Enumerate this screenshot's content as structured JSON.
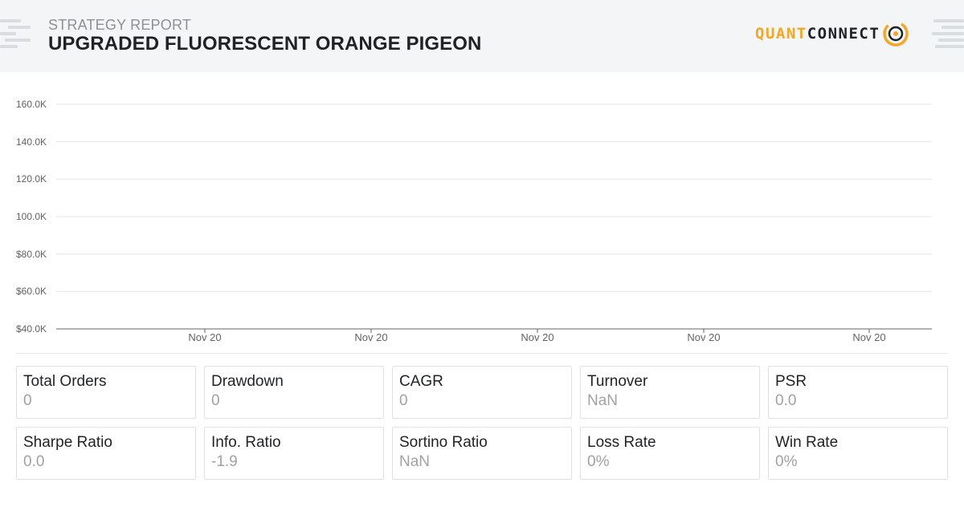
{
  "header": {
    "subtitle": "STRATEGY REPORT",
    "title": "UPGRADED FLUORESCENT ORANGE PIGEON",
    "logo": {
      "part1": "QUANT",
      "part2": "CONNECT",
      "accent": "#f5a623",
      "mark_icon": "quantconnect-logo-icon"
    }
  },
  "chart_data": {
    "type": "line",
    "title": "",
    "xlabel": "",
    "ylabel": "",
    "y_tick_labels": [
      "160.0K",
      "140.0K",
      "120.0K",
      "100.0K",
      "$80.0K",
      "$60.0K",
      "$40.0K"
    ],
    "y_ticks": [
      160000,
      140000,
      120000,
      100000,
      80000,
      60000,
      40000
    ],
    "ylim": [
      40000,
      160000
    ],
    "x_tick_labels": [
      "Nov 20",
      "Nov 20",
      "Nov 20",
      "Nov 20",
      "Nov 20"
    ],
    "series": [],
    "grid": true,
    "legend": "none"
  },
  "stats": [
    {
      "label": "Total Orders",
      "value": "0"
    },
    {
      "label": "Drawdown",
      "value": "0"
    },
    {
      "label": "CAGR",
      "value": "0"
    },
    {
      "label": "Turnover",
      "value": "NaN"
    },
    {
      "label": "PSR",
      "value": "0.0"
    },
    {
      "label": "Sharpe Ratio",
      "value": "0.0"
    },
    {
      "label": "Info. Ratio",
      "value": "-1.9"
    },
    {
      "label": "Sortino Ratio",
      "value": "NaN"
    },
    {
      "label": "Loss Rate",
      "value": "0%"
    },
    {
      "label": "Win Rate",
      "value": "0%"
    }
  ]
}
